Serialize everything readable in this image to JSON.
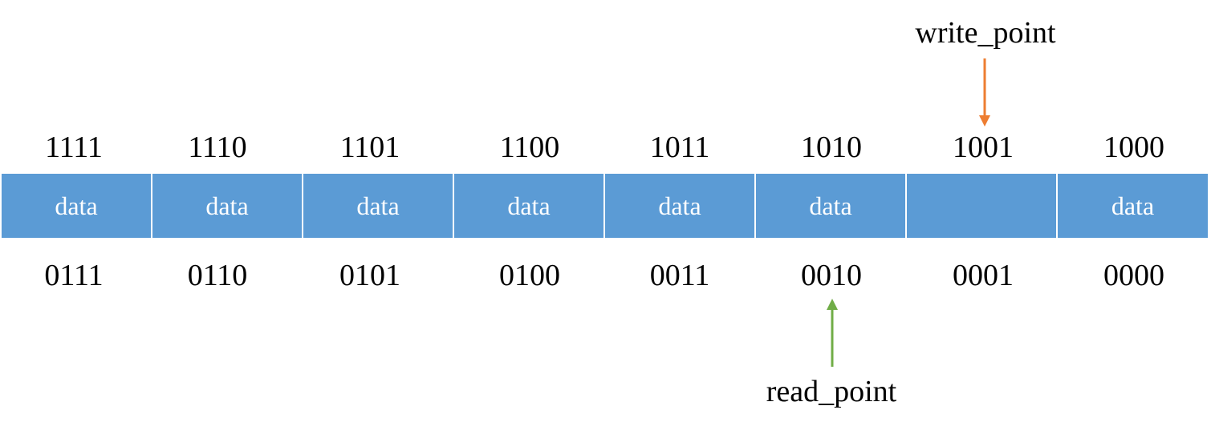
{
  "pointers": {
    "write_label": "write_point",
    "read_label": "read_point",
    "write_color": "#ed7d31",
    "read_color": "#70ad47",
    "write_index": 6,
    "read_index": 5
  },
  "buffer": {
    "fill_color": "#5b9bd5",
    "text_color": "#ffffff",
    "cells": [
      {
        "top_address": "1111",
        "content": "data",
        "bottom_address": "0111"
      },
      {
        "top_address": "1110",
        "content": "data",
        "bottom_address": "0110"
      },
      {
        "top_address": "1101",
        "content": "data",
        "bottom_address": "0101"
      },
      {
        "top_address": "1100",
        "content": "data",
        "bottom_address": "0100"
      },
      {
        "top_address": "1011",
        "content": "data",
        "bottom_address": "0011"
      },
      {
        "top_address": "1010",
        "content": "data",
        "bottom_address": "0010"
      },
      {
        "top_address": "1001",
        "content": "",
        "bottom_address": "0001"
      },
      {
        "top_address": "1000",
        "content": "data",
        "bottom_address": "0000"
      }
    ]
  }
}
